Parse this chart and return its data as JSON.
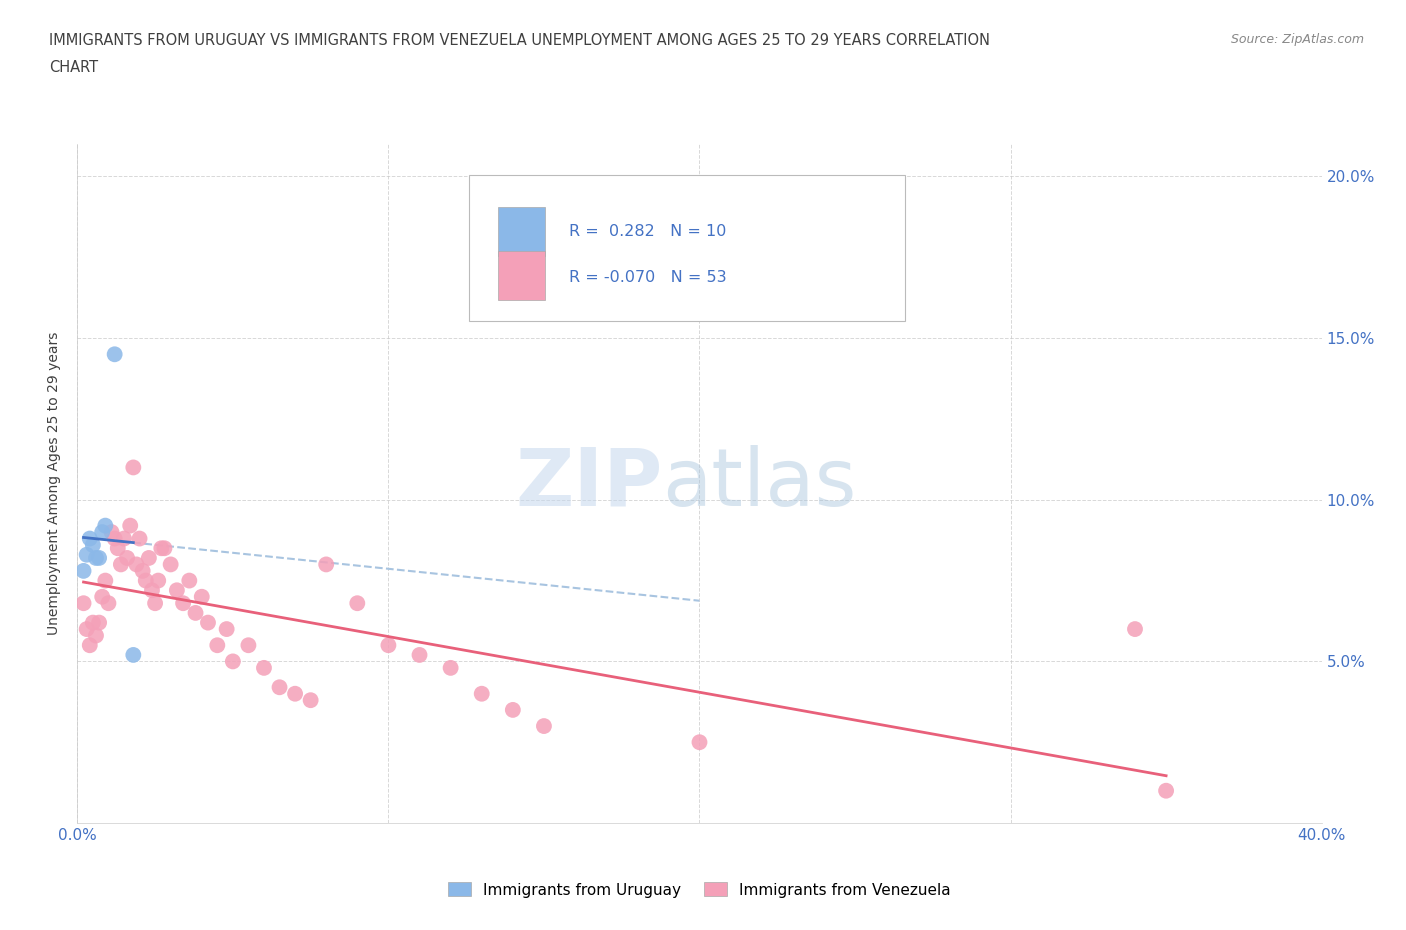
{
  "title_line1": "IMMIGRANTS FROM URUGUAY VS IMMIGRANTS FROM VENEZUELA UNEMPLOYMENT AMONG AGES 25 TO 29 YEARS CORRELATION",
  "title_line2": "CHART",
  "source": "Source: ZipAtlas.com",
  "ylabel": "Unemployment Among Ages 25 to 29 years",
  "xlim": [
    0.0,
    0.4
  ],
  "ylim": [
    0.0,
    0.21
  ],
  "yticks": [
    0.0,
    0.05,
    0.1,
    0.15,
    0.2
  ],
  "ytick_labels": [
    "",
    "5.0%",
    "10.0%",
    "15.0%",
    "20.0%"
  ],
  "xticks": [
    0.0,
    0.1,
    0.2,
    0.3,
    0.4
  ],
  "xtick_labels": [
    "0.0%",
    "",
    "",
    "",
    "40.0%"
  ],
  "color_uruguay": "#8BB8E8",
  "color_venezuela": "#F4A0B8",
  "trendline_uruguay_solid": "#4472C4",
  "trendline_uruguay_dash": "#A8C4E0",
  "trendline_venezuela": "#E8607A",
  "R_uruguay": 0.282,
  "N_uruguay": 10,
  "R_venezuela": -0.07,
  "N_venezuela": 53,
  "uruguay_x": [
    0.002,
    0.003,
    0.004,
    0.005,
    0.006,
    0.007,
    0.008,
    0.009,
    0.012,
    0.018
  ],
  "uruguay_y": [
    0.078,
    0.083,
    0.088,
    0.086,
    0.082,
    0.082,
    0.09,
    0.092,
    0.145,
    0.052
  ],
  "venezuela_x": [
    0.002,
    0.003,
    0.004,
    0.005,
    0.006,
    0.007,
    0.008,
    0.009,
    0.01,
    0.011,
    0.012,
    0.013,
    0.014,
    0.015,
    0.016,
    0.017,
    0.018,
    0.019,
    0.02,
    0.021,
    0.022,
    0.023,
    0.024,
    0.025,
    0.026,
    0.027,
    0.028,
    0.03,
    0.032,
    0.034,
    0.036,
    0.038,
    0.04,
    0.042,
    0.045,
    0.048,
    0.05,
    0.055,
    0.06,
    0.065,
    0.07,
    0.075,
    0.08,
    0.09,
    0.1,
    0.11,
    0.12,
    0.13,
    0.14,
    0.15,
    0.2,
    0.34,
    0.35
  ],
  "venezuela_y": [
    0.068,
    0.06,
    0.055,
    0.062,
    0.058,
    0.062,
    0.07,
    0.075,
    0.068,
    0.09,
    0.088,
    0.085,
    0.08,
    0.088,
    0.082,
    0.092,
    0.11,
    0.08,
    0.088,
    0.078,
    0.075,
    0.082,
    0.072,
    0.068,
    0.075,
    0.085,
    0.085,
    0.08,
    0.072,
    0.068,
    0.075,
    0.065,
    0.07,
    0.062,
    0.055,
    0.06,
    0.05,
    0.055,
    0.048,
    0.042,
    0.04,
    0.038,
    0.08,
    0.068,
    0.055,
    0.052,
    0.048,
    0.04,
    0.035,
    0.03,
    0.025,
    0.06,
    0.01
  ],
  "watermark_zip": "ZIP",
  "watermark_atlas": "atlas",
  "background_color": "#FFFFFF",
  "grid_color": "#C8C8C8",
  "tick_label_color": "#4472C4",
  "title_color": "#404040",
  "ylabel_color": "#404040",
  "legend_color": "#404040"
}
